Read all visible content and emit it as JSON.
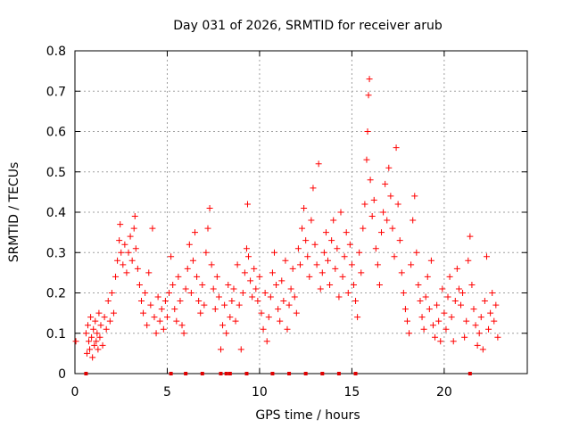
{
  "chart_data": {
    "type": "scatter",
    "title": "Day 031 of 2026, SRMTID for receiver arub",
    "xlabel": "GPS time / hours",
    "ylabel": "SRMTID / TECUs",
    "xlim": [
      0,
      24.5
    ],
    "ylim": [
      0,
      0.8
    ],
    "xticks": [
      0,
      5,
      10,
      15,
      20
    ],
    "yticks": [
      0,
      0.1,
      0.2,
      0.3,
      0.4,
      0.5,
      0.6,
      0.7,
      0.8
    ],
    "xtick_labels": [
      "0",
      "5",
      "10",
      "15",
      "20"
    ],
    "ytick_labels": [
      "0",
      "0.1",
      "0.2",
      "0.3",
      "0.4",
      "0.5",
      "0.6",
      "0.7",
      "0.8"
    ],
    "grid": true,
    "marker": "+",
    "color": "#ff0000",
    "series": [
      {
        "name": "SRMTID",
        "points": [
          [
            0.05,
            0.08
          ],
          [
            0.6,
            0.1
          ],
          [
            0.65,
            0.05
          ],
          [
            0.7,
            0.12
          ],
          [
            0.75,
            0.08
          ],
          [
            0.8,
            0.06
          ],
          [
            0.85,
            0.14
          ],
          [
            0.9,
            0.09
          ],
          [
            0.95,
            0.04
          ],
          [
            1.0,
            0.11
          ],
          [
            1.05,
            0.07
          ],
          [
            1.1,
            0.13
          ],
          [
            1.15,
            0.08
          ],
          [
            1.2,
            0.1
          ],
          [
            1.25,
            0.06
          ],
          [
            1.3,
            0.15
          ],
          [
            1.35,
            0.09
          ],
          [
            1.4,
            0.12
          ],
          [
            1.5,
            0.07
          ],
          [
            1.6,
            0.14
          ],
          [
            1.7,
            0.11
          ],
          [
            1.8,
            0.18
          ],
          [
            1.9,
            0.13
          ],
          [
            2.0,
            0.2
          ],
          [
            2.1,
            0.15
          ],
          [
            2.2,
            0.24
          ],
          [
            2.3,
            0.28
          ],
          [
            2.4,
            0.33
          ],
          [
            2.45,
            0.37
          ],
          [
            2.5,
            0.3
          ],
          [
            2.6,
            0.27
          ],
          [
            2.7,
            0.32
          ],
          [
            2.8,
            0.25
          ],
          [
            2.9,
            0.3
          ],
          [
            3.0,
            0.34
          ],
          [
            3.1,
            0.28
          ],
          [
            3.2,
            0.36
          ],
          [
            3.25,
            0.39
          ],
          [
            3.3,
            0.31
          ],
          [
            3.4,
            0.26
          ],
          [
            3.5,
            0.22
          ],
          [
            3.6,
            0.18
          ],
          [
            3.7,
            0.15
          ],
          [
            3.8,
            0.2
          ],
          [
            3.9,
            0.12
          ],
          [
            4.0,
            0.25
          ],
          [
            4.1,
            0.17
          ],
          [
            4.2,
            0.36
          ],
          [
            4.3,
            0.14
          ],
          [
            4.4,
            0.1
          ],
          [
            4.5,
            0.19
          ],
          [
            4.6,
            0.13
          ],
          [
            4.7,
            0.16
          ],
          [
            4.8,
            0.11
          ],
          [
            4.9,
            0.18
          ],
          [
            5.0,
            0.14
          ],
          [
            5.1,
            0.2
          ],
          [
            5.2,
            0.29
          ],
          [
            5.3,
            0.22
          ],
          [
            5.4,
            0.16
          ],
          [
            5.5,
            0.13
          ],
          [
            5.6,
            0.24
          ],
          [
            5.7,
            0.18
          ],
          [
            5.8,
            0.12
          ],
          [
            5.9,
            0.1
          ],
          [
            6.0,
            0.21
          ],
          [
            6.1,
            0.26
          ],
          [
            6.2,
            0.32
          ],
          [
            6.3,
            0.2
          ],
          [
            6.4,
            0.28
          ],
          [
            6.5,
            0.35
          ],
          [
            6.6,
            0.24
          ],
          [
            6.7,
            0.18
          ],
          [
            6.8,
            0.15
          ],
          [
            6.9,
            0.22
          ],
          [
            7.0,
            0.17
          ],
          [
            7.1,
            0.3
          ],
          [
            7.2,
            0.36
          ],
          [
            7.3,
            0.41
          ],
          [
            7.4,
            0.27
          ],
          [
            7.5,
            0.21
          ],
          [
            7.6,
            0.16
          ],
          [
            7.7,
            0.24
          ],
          [
            7.8,
            0.19
          ],
          [
            7.9,
            0.06
          ],
          [
            8.0,
            0.12
          ],
          [
            8.1,
            0.17
          ],
          [
            8.2,
            0.1
          ],
          [
            8.3,
            0.22
          ],
          [
            8.4,
            0.14
          ],
          [
            8.5,
            0.18
          ],
          [
            8.6,
            0.21
          ],
          [
            8.7,
            0.13
          ],
          [
            8.8,
            0.27
          ],
          [
            8.9,
            0.17
          ],
          [
            9.0,
            0.06
          ],
          [
            9.1,
            0.2
          ],
          [
            9.2,
            0.25
          ],
          [
            9.3,
            0.31
          ],
          [
            9.35,
            0.42
          ],
          [
            9.4,
            0.29
          ],
          [
            9.5,
            0.23
          ],
          [
            9.6,
            0.19
          ],
          [
            9.7,
            0.26
          ],
          [
            9.8,
            0.21
          ],
          [
            9.9,
            0.18
          ],
          [
            10.0,
            0.24
          ],
          [
            10.1,
            0.15
          ],
          [
            10.2,
            0.11
          ],
          [
            10.3,
            0.2
          ],
          [
            10.4,
            0.08
          ],
          [
            10.5,
            0.14
          ],
          [
            10.6,
            0.19
          ],
          [
            10.7,
            0.25
          ],
          [
            10.8,
            0.3
          ],
          [
            10.9,
            0.22
          ],
          [
            11.0,
            0.16
          ],
          [
            11.1,
            0.13
          ],
          [
            11.2,
            0.23
          ],
          [
            11.3,
            0.18
          ],
          [
            11.4,
            0.28
          ],
          [
            11.5,
            0.11
          ],
          [
            11.6,
            0.17
          ],
          [
            11.7,
            0.21
          ],
          [
            11.8,
            0.26
          ],
          [
            11.9,
            0.19
          ],
          [
            12.0,
            0.15
          ],
          [
            12.1,
            0.31
          ],
          [
            12.2,
            0.27
          ],
          [
            12.3,
            0.36
          ],
          [
            12.4,
            0.41
          ],
          [
            12.5,
            0.33
          ],
          [
            12.6,
            0.29
          ],
          [
            12.7,
            0.24
          ],
          [
            12.8,
            0.38
          ],
          [
            12.9,
            0.46
          ],
          [
            13.0,
            0.32
          ],
          [
            13.1,
            0.27
          ],
          [
            13.2,
            0.52
          ],
          [
            13.3,
            0.21
          ],
          [
            13.4,
            0.25
          ],
          [
            13.5,
            0.3
          ],
          [
            13.6,
            0.35
          ],
          [
            13.7,
            0.28
          ],
          [
            13.8,
            0.22
          ],
          [
            13.9,
            0.33
          ],
          [
            14.0,
            0.38
          ],
          [
            14.1,
            0.26
          ],
          [
            14.2,
            0.31
          ],
          [
            14.3,
            0.19
          ],
          [
            14.4,
            0.4
          ],
          [
            14.5,
            0.24
          ],
          [
            14.6,
            0.29
          ],
          [
            14.7,
            0.35
          ],
          [
            14.8,
            0.2
          ],
          [
            14.9,
            0.32
          ],
          [
            15.0,
            0.27
          ],
          [
            15.1,
            0.22
          ],
          [
            15.2,
            0.18
          ],
          [
            15.3,
            0.14
          ],
          [
            15.4,
            0.3
          ],
          [
            15.5,
            0.25
          ],
          [
            15.6,
            0.36
          ],
          [
            15.7,
            0.42
          ],
          [
            15.8,
            0.53
          ],
          [
            15.85,
            0.6
          ],
          [
            15.9,
            0.69
          ],
          [
            15.95,
            0.73
          ],
          [
            16.0,
            0.48
          ],
          [
            16.1,
            0.39
          ],
          [
            16.2,
            0.43
          ],
          [
            16.3,
            0.31
          ],
          [
            16.4,
            0.27
          ],
          [
            16.5,
            0.22
          ],
          [
            16.6,
            0.35
          ],
          [
            16.7,
            0.4
          ],
          [
            16.8,
            0.47
          ],
          [
            16.9,
            0.38
          ],
          [
            17.0,
            0.51
          ],
          [
            17.1,
            0.44
          ],
          [
            17.2,
            0.36
          ],
          [
            17.3,
            0.29
          ],
          [
            17.4,
            0.56
          ],
          [
            17.5,
            0.42
          ],
          [
            17.6,
            0.33
          ],
          [
            17.7,
            0.25
          ],
          [
            17.8,
            0.2
          ],
          [
            17.9,
            0.16
          ],
          [
            18.0,
            0.13
          ],
          [
            18.1,
            0.1
          ],
          [
            18.2,
            0.27
          ],
          [
            18.3,
            0.38
          ],
          [
            18.4,
            0.44
          ],
          [
            18.5,
            0.3
          ],
          [
            18.6,
            0.22
          ],
          [
            18.7,
            0.18
          ],
          [
            18.8,
            0.14
          ],
          [
            18.9,
            0.11
          ],
          [
            19.0,
            0.19
          ],
          [
            19.1,
            0.24
          ],
          [
            19.2,
            0.16
          ],
          [
            19.3,
            0.28
          ],
          [
            19.4,
            0.12
          ],
          [
            19.5,
            0.09
          ],
          [
            19.6,
            0.17
          ],
          [
            19.7,
            0.13
          ],
          [
            19.8,
            0.08
          ],
          [
            19.9,
            0.21
          ],
          [
            20.0,
            0.15
          ],
          [
            20.1,
            0.11
          ],
          [
            20.2,
            0.19
          ],
          [
            20.3,
            0.24
          ],
          [
            20.4,
            0.14
          ],
          [
            20.5,
            0.08
          ],
          [
            20.6,
            0.18
          ],
          [
            20.7,
            0.26
          ],
          [
            20.8,
            0.21
          ],
          [
            20.9,
            0.17
          ],
          [
            21.0,
            0.2
          ],
          [
            21.1,
            0.09
          ],
          [
            21.2,
            0.13
          ],
          [
            21.3,
            0.28
          ],
          [
            21.4,
            0.34
          ],
          [
            21.5,
            0.22
          ],
          [
            21.6,
            0.16
          ],
          [
            21.7,
            0.12
          ],
          [
            21.8,
            0.07
          ],
          [
            21.9,
            0.1
          ],
          [
            22.0,
            0.14
          ],
          [
            22.1,
            0.06
          ],
          [
            22.2,
            0.18
          ],
          [
            22.3,
            0.29
          ],
          [
            22.4,
            0.11
          ],
          [
            22.5,
            0.15
          ],
          [
            22.6,
            0.2
          ],
          [
            22.7,
            0.13
          ],
          [
            22.8,
            0.17
          ],
          [
            22.9,
            0.09
          ]
        ]
      }
    ],
    "baseline_markers_x": [
      0.6,
      5.2,
      6.0,
      6.9,
      7.9,
      8.2,
      8.4,
      9.3,
      10.7,
      11.6,
      12.5,
      13.4,
      14.3,
      15.2,
      21.4
    ]
  }
}
